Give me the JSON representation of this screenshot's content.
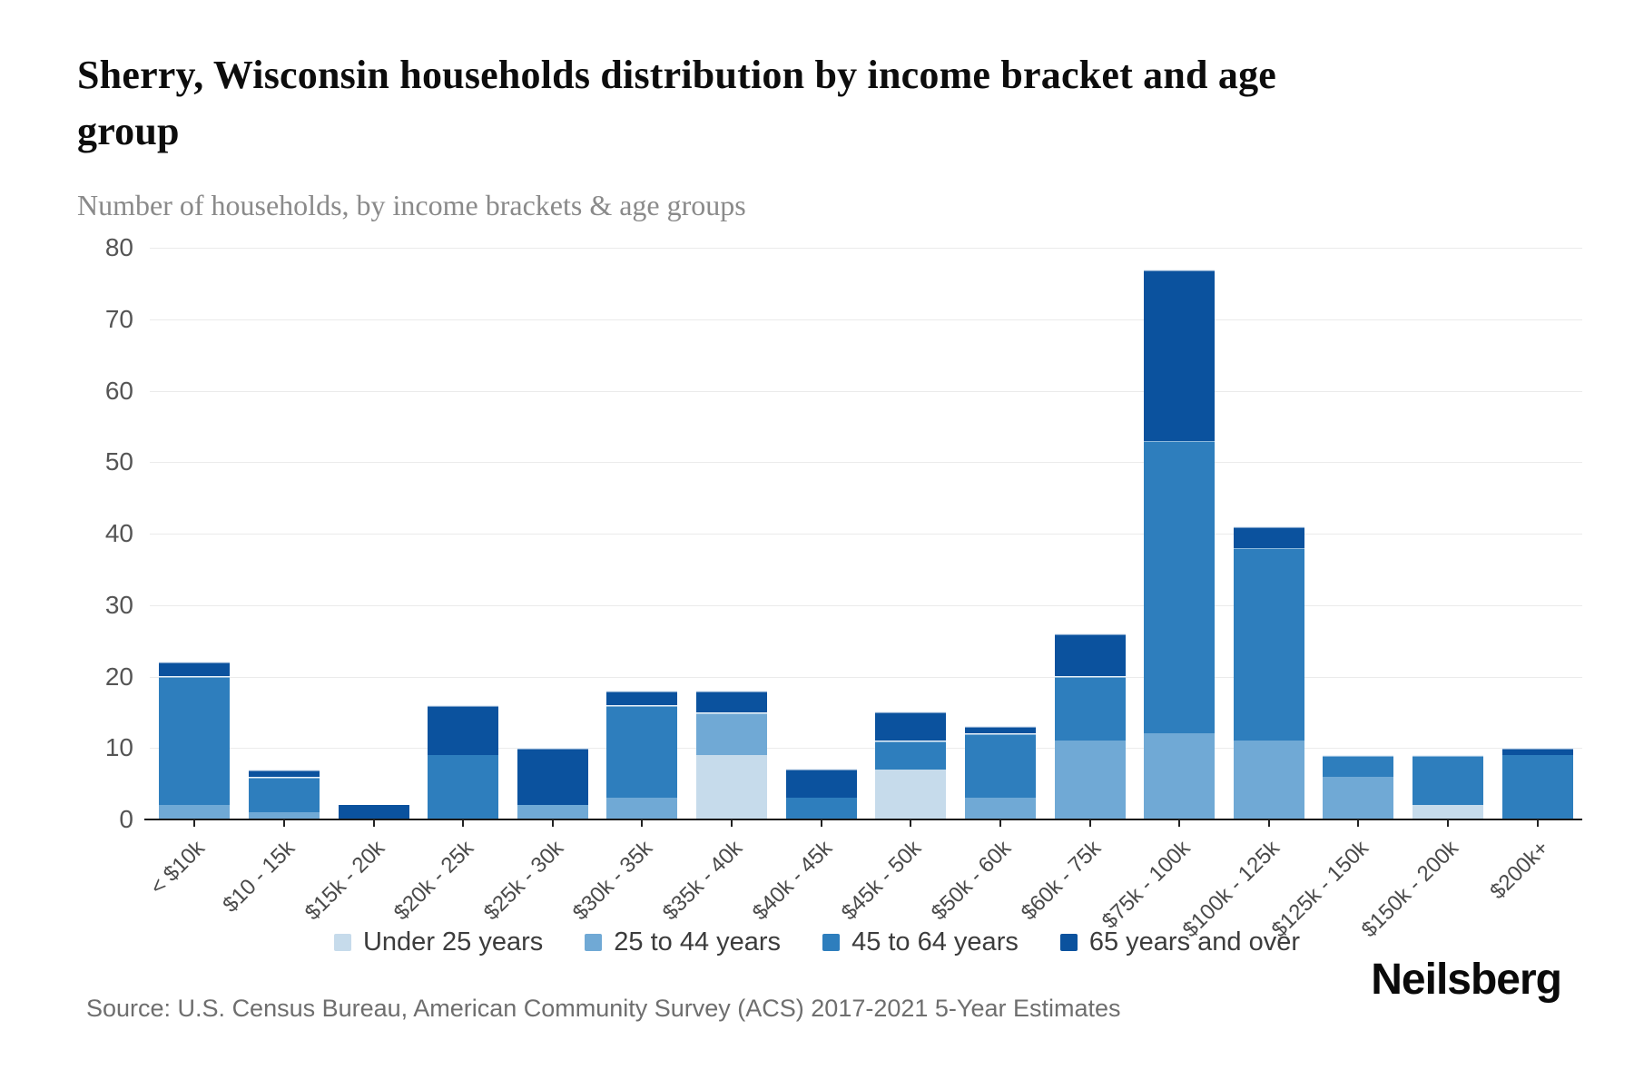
{
  "header": {
    "title": "Sherry, Wisconsin households distribution by income bracket and age group",
    "subtitle": "Number of households, by income brackets & age groups"
  },
  "chart_data": {
    "type": "bar",
    "stacked": true,
    "title": "Sherry, Wisconsin households distribution by income bracket and age group",
    "subtitle": "Number of households, by income brackets & age groups",
    "categories": [
      "< $10k",
      "$10 - 15k",
      "$15k - 20k",
      "$20k - 25k",
      "$25k - 30k",
      "$30k - 35k",
      "$35k - 40k",
      "$40k - 45k",
      "$45k - 50k",
      "$50k - 60k",
      "$60k - 75k",
      "$75k - 100k",
      "$100k - 125k",
      "$125k - 150k",
      "$150k - 200k",
      "$200k+"
    ],
    "series": [
      {
        "name": "Under 25 years",
        "color": "#c6dbeb",
        "values": [
          0,
          0,
          0,
          0,
          0,
          0,
          9,
          0,
          7,
          0,
          0,
          0,
          0,
          0,
          2,
          0
        ]
      },
      {
        "name": "25 to 44 years",
        "color": "#70a9d5",
        "values": [
          2,
          1,
          0,
          0,
          2,
          3,
          6,
          0,
          0,
          3,
          11,
          12,
          11,
          6,
          0,
          0
        ]
      },
      {
        "name": "45 to 64 years",
        "color": "#2e7ebd",
        "values": [
          18,
          5,
          0,
          9,
          0,
          13,
          0,
          3,
          4,
          9,
          9,
          41,
          27,
          3,
          7,
          9
        ]
      },
      {
        "name": "65 years and over",
        "color": "#0b529e",
        "values": [
          2,
          1,
          2,
          7,
          8,
          2,
          3,
          4,
          4,
          1,
          6,
          24,
          3,
          0,
          0,
          1
        ]
      }
    ],
    "totals": [
      22,
      7,
      2,
      16,
      10,
      18,
      18,
      7,
      15,
      13,
      26,
      77,
      41,
      9,
      9,
      10
    ],
    "xlabel": "",
    "ylabel": "Number of households",
    "ylim": [
      0,
      80
    ],
    "yticks": [
      0,
      10,
      20,
      30,
      40,
      50,
      60,
      70,
      80
    ],
    "grid": true,
    "legend_position": "bottom"
  },
  "footer": {
    "source": "Source: U.S. Census Bureau, American Community Survey (ACS) 2017-2021 5-Year Estimates",
    "logo": "Neilsberg"
  }
}
